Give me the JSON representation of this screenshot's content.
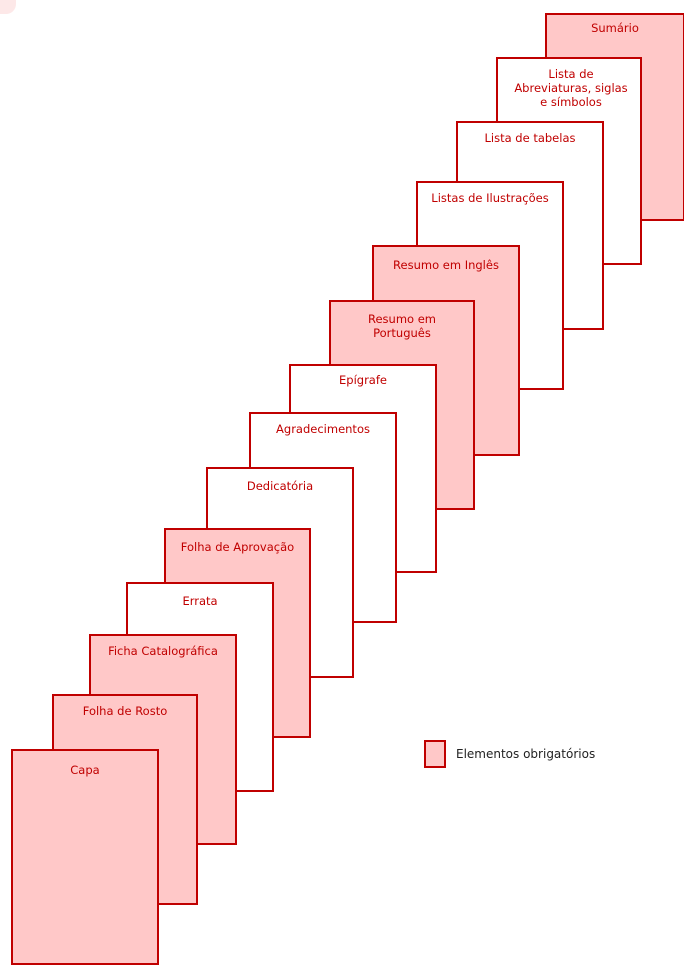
{
  "legend": {
    "label": "Elementos obrigatórios",
    "color": "#ffc8c8",
    "border_color": "#c00000"
  },
  "pages": [
    {
      "label": "Sumário",
      "required": true
    },
    {
      "label": "Lista de Abreviaturas, siglas e símbolos",
      "required": false
    },
    {
      "label": "Lista de tabelas",
      "required": false
    },
    {
      "label": "Listas de Ilustrações",
      "required": false
    },
    {
      "label": "Resumo em Inglês",
      "required": true
    },
    {
      "label": "Resumo em Português",
      "required": true
    },
    {
      "label": "Epígrafe",
      "required": false
    },
    {
      "label": "Agradecimentos",
      "required": false
    },
    {
      "label": "Dedicatória",
      "required": false
    },
    {
      "label": "Folha de Aprovação",
      "required": true
    },
    {
      "label": "Errata",
      "required": false
    },
    {
      "label": "Ficha Catalográfica",
      "required": true
    },
    {
      "label": "Folha de Rosto",
      "required": true
    },
    {
      "label": "Capa",
      "required": true
    }
  ]
}
